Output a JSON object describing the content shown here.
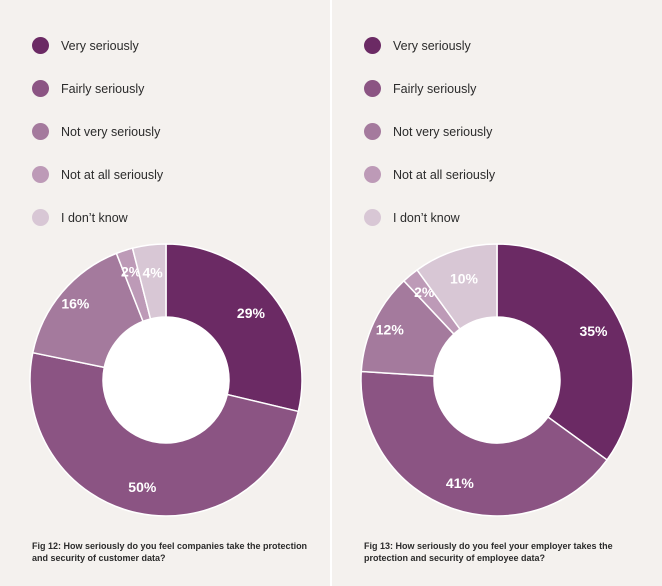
{
  "legend": [
    {
      "label": "Very seriously",
      "color": "#6b2a64"
    },
    {
      "label": "Fairly seriously",
      "color": "#8b5483"
    },
    {
      "label": "Not very seriously",
      "color": "#a47a9d"
    },
    {
      "label": "Not at all seriously",
      "color": "#bd9ab7"
    },
    {
      "label": "I don’t know",
      "color": "#d8c7d5"
    }
  ],
  "chart_data": [
    {
      "type": "pie",
      "caption": "Fig 12: How seriously do you feel companies take the protection and security of customer data?",
      "categories": [
        "Very seriously",
        "Fairly seriously",
        "Not very seriously",
        "Not at all seriously",
        "I don’t know"
      ],
      "values": [
        29,
        50,
        16,
        2,
        4
      ],
      "labels": [
        "29%",
        "50%",
        "16%",
        "2%",
        "4%"
      ]
    },
    {
      "type": "pie",
      "caption": "Fig 13: How seriously do you feel your employer takes the protection and security of employee data?",
      "categories": [
        "Very seriously",
        "Fairly seriously",
        "Not very seriously",
        "Not at all seriously",
        "I don’t know"
      ],
      "values": [
        35,
        41,
        12,
        2,
        10
      ],
      "labels": [
        "35%",
        "41%",
        "12%",
        "2%",
        "10%"
      ]
    }
  ]
}
